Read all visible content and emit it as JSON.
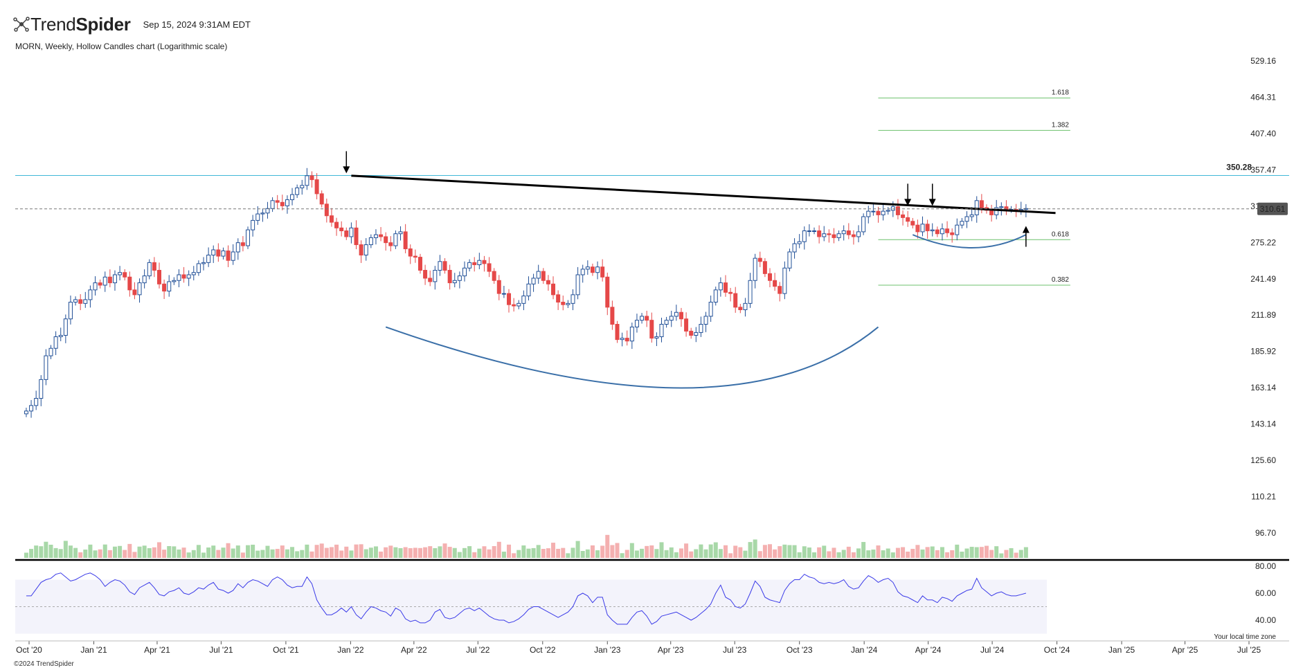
{
  "header": {
    "brand_light": "Trend",
    "brand_bold": "Spider",
    "timestamp": "Sep 15, 2024 9:31AM EDT"
  },
  "chart_title": "MORN, Weekly, Hollow Candles chart (Logarithmic scale)",
  "copyright": "©2024 TrendSpider",
  "timezone_note": "Your local time zone",
  "colors": {
    "up": "#1f4e96",
    "down": "#e54848",
    "vol_up": "#a8d8a8",
    "vol_down": "#f4b0b0",
    "resistance": "#40b8d8",
    "trendline": "#000000",
    "fib": "#6cc06c",
    "arc": "#3a6fa8",
    "rsi": "#3a3ae8",
    "last_price_bg": "#555555"
  },
  "icons": [
    "trendspider-logo-icon",
    "arrow-down-icon",
    "arrow-up-icon"
  ],
  "chart_data": {
    "type": "candlestick",
    "symbol": "MORN",
    "interval": "Weekly",
    "scale": "log",
    "price_axis_ticks": [
      "529.16",
      "464.31",
      "407.40",
      "357.47",
      "313.65",
      "275.22",
      "241.49",
      "211.89",
      "185.92",
      "163.14",
      "143.14",
      "125.60",
      "110.21",
      "96.70"
    ],
    "x_axis_ticks": [
      "Oct '20",
      "Jan '21",
      "Apr '21",
      "Jul '21",
      "Oct '21",
      "Jan '22",
      "Apr '22",
      "Jul '22",
      "Oct '22",
      "Jan '23",
      "Apr '23",
      "Jul '23",
      "Oct '23",
      "Jan '24",
      "Apr '24",
      "Jul '24",
      "Oct '24",
      "Jan '25",
      "Apr '25",
      "Jul '25"
    ],
    "resistance_level": "350.28",
    "last_price": "310.61",
    "fib_levels": [
      {
        "label": "1.618",
        "value": 463
      },
      {
        "label": "1.382",
        "value": 412
      },
      {
        "label": "0.618",
        "value": 278
      },
      {
        "label": "0.382",
        "value": 236
      }
    ],
    "trendline": {
      "from": {
        "date": "2022-01-02",
        "price": 350
      },
      "to": {
        "date": "2024-09-29",
        "price": 306
      }
    },
    "arcs": [
      {
        "name": "cup",
        "from": {
          "date": "2022-02-20",
          "price": 203
        },
        "bottom": {
          "date": "2023-04-16",
          "price": 163
        },
        "to": {
          "date": "2024-01-21",
          "price": 203
        }
      },
      {
        "name": "handle",
        "from": {
          "date": "2024-03-10",
          "price": 283
        },
        "bottom": {
          "date": "2024-06-02",
          "price": 270
        },
        "to": {
          "date": "2024-08-18",
          "price": 283
        }
      }
    ],
    "arrows": [
      {
        "dir": "down",
        "date": "2021-12-26",
        "price": 353
      },
      {
        "dir": "down",
        "date": "2024-03-03",
        "price": 314
      },
      {
        "dir": "down",
        "date": "2024-04-07",
        "price": 314
      },
      {
        "dir": "up",
        "date": "2024-08-18",
        "price": 292
      }
    ],
    "candles_weekly_close": [
      {
        "start": "2020-09-27",
        "closes": [
          150,
          153,
          157,
          168,
          183,
          188,
          196,
          197,
          209,
          222,
          224,
          221,
          224,
          232,
          238,
          236,
          243,
          238,
          245,
          247,
          243,
          232,
          228,
          238,
          244,
          256,
          249,
          237,
          231,
          239,
          240,
          245,
          242,
          245,
          247,
          255,
          256,
          263,
          268,
          262,
          267,
          258,
          266,
          275,
          272,
          288,
          298,
          305,
          306,
          311,
          320,
          318,
          314,
          321,
          327,
          335,
          338,
          350,
          345,
          328,
          316,
          303,
          296,
          290,
          287,
          281,
          290,
          273,
          263,
          273,
          280,
          283,
          281,
          275,
          272,
          284,
          286,
          269,
          262,
          261,
          249,
          242,
          239,
          249,
          257,
          249,
          238,
          240,
          244,
          251,
          256,
          254,
          258,
          255,
          248,
          240,
          229,
          229,
          220,
          219,
          221,
          227,
          237,
          242,
          248,
          240,
          237,
          228,
          222,
          220,
          221,
          228,
          245,
          250,
          252,
          247,
          252,
          243,
          218,
          205,
          194,
          195,
          193,
          203,
          208,
          211,
          208,
          195,
          196,
          205,
          208,
          211,
          214,
          209,
          200,
          197,
          199,
          205,
          211,
          222,
          232,
          238,
          230,
          229,
          218,
          216,
          221,
          240,
          260,
          257,
          246,
          240,
          235,
          229,
          251,
          266,
          274,
          276,
          287,
          287,
          287,
          281,
          284,
          283,
          280,
          284,
          287,
          283,
          281,
          286,
          302,
          308,
          308,
          304,
          308,
          309,
          313,
          304,
          301,
          297,
          293,
          286,
          294,
          287,
          288,
          284,
          289,
          285,
          283,
          293,
          297,
          302,
          304,
          320,
          312,
          309,
          304,
          312,
          313,
          310,
          310,
          309,
          310,
          311
        ]
      }
    ],
    "volume_note": "volume histogram, same weeks",
    "rsi": {
      "ticks": [
        "80.00",
        "60.00",
        "40.00"
      ],
      "band": [
        70,
        50
      ],
      "values": [
        58,
        58,
        63,
        68,
        70,
        71,
        74,
        75,
        72,
        69,
        70,
        72,
        74,
        75,
        73,
        70,
        65,
        68,
        70,
        69,
        66,
        61,
        59,
        64,
        66,
        68,
        64,
        59,
        58,
        61,
        62,
        64,
        60,
        59,
        61,
        64,
        63,
        66,
        68,
        63,
        62,
        60,
        62,
        67,
        64,
        68,
        70,
        69,
        67,
        65,
        70,
        72,
        70,
        66,
        64,
        65,
        65,
        72,
        67,
        55,
        49,
        44,
        44,
        46,
        49,
        46,
        50,
        44,
        41,
        46,
        50,
        49,
        47,
        46,
        43,
        49,
        47,
        41,
        39,
        40,
        38,
        38,
        40,
        46,
        48,
        42,
        41,
        42,
        45,
        48,
        49,
        47,
        49,
        46,
        43,
        41,
        40,
        40,
        38,
        39,
        41,
        44,
        48,
        50,
        50,
        48,
        46,
        44,
        42,
        44,
        46,
        50,
        58,
        60,
        58,
        53,
        57,
        57,
        44,
        40,
        37,
        37,
        37,
        42,
        46,
        47,
        43,
        37,
        39,
        43,
        44,
        45,
        46,
        44,
        42,
        40,
        42,
        45,
        48,
        52,
        60,
        66,
        57,
        55,
        50,
        49,
        52,
        60,
        69,
        65,
        57,
        55,
        54,
        53,
        62,
        67,
        70,
        70,
        74,
        72,
        71,
        68,
        67,
        68,
        67,
        68,
        70,
        65,
        63,
        64,
        69,
        73,
        71,
        68,
        70,
        71,
        68,
        61,
        58,
        57,
        55,
        53,
        58,
        55,
        55,
        53,
        57,
        56,
        54,
        58,
        60,
        62,
        63,
        71,
        64,
        61,
        58,
        60,
        61,
        59,
        58,
        58,
        59,
        60
      ]
    }
  }
}
